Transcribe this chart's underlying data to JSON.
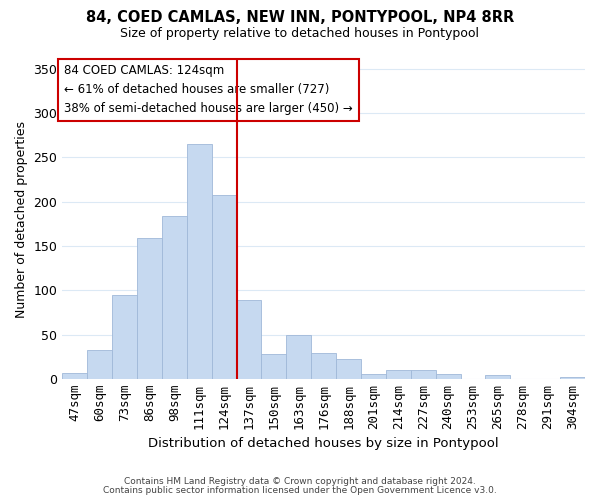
{
  "title": "84, COED CAMLAS, NEW INN, PONTYPOOL, NP4 8RR",
  "subtitle": "Size of property relative to detached houses in Pontypool",
  "xlabel": "Distribution of detached houses by size in Pontypool",
  "ylabel": "Number of detached properties",
  "bar_labels": [
    "47sqm",
    "60sqm",
    "73sqm",
    "86sqm",
    "98sqm",
    "111sqm",
    "124sqm",
    "137sqm",
    "150sqm",
    "163sqm",
    "176sqm",
    "188sqm",
    "201sqm",
    "214sqm",
    "227sqm",
    "240sqm",
    "253sqm",
    "265sqm",
    "278sqm",
    "291sqm",
    "304sqm"
  ],
  "bar_heights": [
    6,
    32,
    95,
    159,
    184,
    265,
    208,
    89,
    28,
    49,
    29,
    22,
    5,
    10,
    10,
    5,
    0,
    4,
    0,
    0,
    2
  ],
  "bar_color": "#c6d9f0",
  "bar_edge_color": "#a0b8d8",
  "vline_index": 6,
  "vline_color": "#cc0000",
  "annotation_title": "84 COED CAMLAS: 124sqm",
  "annotation_line1": "← 61% of detached houses are smaller (727)",
  "annotation_line2": "38% of semi-detached houses are larger (450) →",
  "ylim": [
    0,
    360
  ],
  "footer1": "Contains HM Land Registry data © Crown copyright and database right 2024.",
  "footer2": "Contains public sector information licensed under the Open Government Licence v3.0.",
  "background_color": "#ffffff",
  "grid_color": "#dce9f5"
}
